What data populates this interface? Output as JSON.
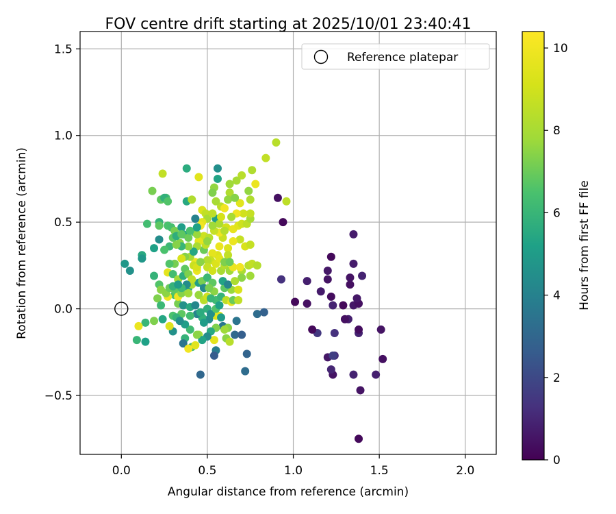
{
  "chart_data": {
    "type": "scatter",
    "title": "FOV centre drift starting at 2025/10/01 23:40:41",
    "xlabel": "Angular distance from reference (arcmin)",
    "ylabel": "Rotation from reference (arcmin)",
    "xlim": [
      -0.24,
      2.18
    ],
    "ylim": [
      -0.84,
      1.6
    ],
    "xticks": [
      0.0,
      0.5,
      1.0,
      1.5,
      2.0
    ],
    "xtick_labels": [
      "0.0",
      "0.5",
      "1.0",
      "1.5",
      "2.0"
    ],
    "yticks": [
      -0.5,
      0.0,
      0.5,
      1.0,
      1.5
    ],
    "ytick_labels": [
      "−0.5",
      "0.0",
      "0.5",
      "1.0",
      "1.5"
    ],
    "grid": true,
    "legend": {
      "placement": "top-right",
      "label": "Reference platepar"
    },
    "reference_point": {
      "x": 0.0,
      "y": 0.0
    },
    "colorbar": {
      "label": "Hours from first FF file",
      "range": [
        0,
        10.4
      ],
      "ticks": [
        0,
        2,
        4,
        6,
        8,
        10
      ],
      "tick_labels": [
        "0",
        "2",
        "4",
        "6",
        "8",
        "10"
      ],
      "colormap": "viridis"
    },
    "points": [
      [
        1.38,
        -0.75,
        0.2
      ],
      [
        1.39,
        -0.47,
        0.5
      ],
      [
        1.48,
        -0.38,
        0.8
      ],
      [
        1.35,
        -0.38,
        0.9
      ],
      [
        1.23,
        -0.38,
        0.5
      ],
      [
        1.52,
        -0.29,
        0.4
      ],
      [
        1.22,
        -0.35,
        1.0
      ],
      [
        1.2,
        -0.28,
        0.6
      ],
      [
        1.24,
        -0.27,
        1.2
      ],
      [
        1.23,
        -0.27,
        1.7
      ],
      [
        1.38,
        -0.14,
        0.9
      ],
      [
        1.24,
        -0.14,
        1.3
      ],
      [
        1.14,
        -0.14,
        1.5
      ],
      [
        1.11,
        -0.12,
        0.2
      ],
      [
        1.38,
        -0.12,
        0.3
      ],
      [
        1.51,
        -0.12,
        0.5
      ],
      [
        1.32,
        -0.06,
        0.8
      ],
      [
        1.3,
        -0.06,
        0.4
      ],
      [
        1.35,
        0.02,
        0.6
      ],
      [
        1.23,
        0.02,
        0.9
      ],
      [
        1.29,
        0.02,
        0.2
      ],
      [
        1.08,
        0.03,
        0.4
      ],
      [
        1.01,
        0.04,
        0.2
      ],
      [
        1.38,
        0.03,
        0.4
      ],
      [
        1.37,
        0.06,
        0.6
      ],
      [
        1.16,
        0.1,
        0.7
      ],
      [
        1.22,
        0.07,
        0.3
      ],
      [
        1.08,
        0.16,
        0.8
      ],
      [
        1.2,
        0.17,
        0.5
      ],
      [
        1.33,
        0.14,
        0.4
      ],
      [
        1.33,
        0.18,
        0.5
      ],
      [
        1.4,
        0.19,
        0.9
      ],
      [
        1.2,
        0.22,
        0.6
      ],
      [
        1.35,
        0.26,
        0.7
      ],
      [
        1.22,
        0.3,
        0.2
      ],
      [
        1.35,
        0.43,
        0.7
      ],
      [
        0.93,
        0.17,
        1.3
      ],
      [
        0.94,
        0.5,
        0.2
      ],
      [
        0.91,
        0.64,
        0.4
      ],
      [
        0.96,
        0.62,
        8.5
      ],
      [
        0.9,
        0.96,
        8.4
      ],
      [
        0.84,
        0.87,
        8.6
      ],
      [
        0.76,
        0.8,
        8.2
      ],
      [
        0.7,
        0.77,
        8.4
      ],
      [
        0.67,
        0.74,
        8.0
      ],
      [
        0.63,
        0.72,
        7.8
      ],
      [
        0.56,
        0.81,
        4.5
      ],
      [
        0.56,
        0.75,
        5.3
      ],
      [
        0.54,
        0.7,
        7.6
      ],
      [
        0.53,
        0.67,
        7.3
      ],
      [
        0.63,
        0.67,
        8.2
      ],
      [
        0.74,
        0.68,
        7.6
      ],
      [
        0.78,
        0.72,
        9.8
      ],
      [
        0.69,
        0.61,
        9.5
      ],
      [
        0.58,
        0.59,
        8.5
      ],
      [
        0.55,
        0.62,
        8.0
      ],
      [
        0.62,
        0.63,
        7.6
      ],
      [
        0.66,
        0.64,
        7.4
      ],
      [
        0.75,
        0.63,
        8.2
      ],
      [
        0.47,
        0.57,
        9.3
      ],
      [
        0.49,
        0.55,
        8.6
      ],
      [
        0.5,
        0.52,
        8.0
      ],
      [
        0.47,
        0.5,
        9.6
      ],
      [
        0.46,
        0.48,
        10.0
      ],
      [
        0.43,
        0.52,
        4.0
      ],
      [
        0.38,
        0.62,
        5.5
      ],
      [
        0.41,
        0.63,
        8.2
      ],
      [
        0.38,
        0.81,
        5.6
      ],
      [
        0.45,
        0.76,
        9.5
      ],
      [
        0.24,
        0.78,
        8.6
      ],
      [
        0.23,
        0.63,
        6.8
      ],
      [
        0.26,
        0.64,
        6.3
      ],
      [
        0.25,
        0.64,
        5.8
      ],
      [
        0.27,
        0.62,
        6.6
      ],
      [
        0.18,
        0.68,
        7.2
      ],
      [
        0.15,
        0.49,
        6.3
      ],
      [
        0.22,
        0.5,
        5.9
      ],
      [
        0.22,
        0.48,
        6.8
      ],
      [
        0.27,
        0.48,
        6.5
      ],
      [
        0.29,
        0.47,
        6.4
      ],
      [
        0.31,
        0.45,
        7.2
      ],
      [
        0.35,
        0.47,
        5.1
      ],
      [
        0.36,
        0.43,
        5.3
      ],
      [
        0.39,
        0.41,
        7.0
      ],
      [
        0.43,
        0.44,
        6.3
      ],
      [
        0.34,
        0.38,
        7.5
      ],
      [
        0.28,
        0.36,
        6.1
      ],
      [
        0.25,
        0.34,
        6.5
      ],
      [
        0.22,
        0.4,
        4.4
      ],
      [
        0.19,
        0.35,
        5.2
      ],
      [
        0.12,
        0.31,
        5.5
      ],
      [
        0.12,
        0.29,
        4.8
      ],
      [
        0.02,
        0.26,
        4.8
      ],
      [
        0.05,
        0.22,
        4.6
      ],
      [
        0.19,
        0.19,
        5.9
      ],
      [
        0.22,
        0.14,
        6.6
      ],
      [
        0.23,
        0.11,
        7.5
      ],
      [
        0.21,
        0.06,
        7.3
      ],
      [
        0.23,
        0.02,
        6.1
      ],
      [
        0.24,
        -0.06,
        5.4
      ],
      [
        0.19,
        -0.07,
        7.3
      ],
      [
        0.14,
        -0.08,
        6.0
      ],
      [
        0.1,
        -0.1,
        9.8
      ],
      [
        0.14,
        -0.19,
        5.2
      ],
      [
        0.09,
        -0.18,
        6.0
      ],
      [
        0.3,
        -0.13,
        4.6
      ],
      [
        0.37,
        -0.17,
        5.9
      ],
      [
        0.36,
        -0.2,
        3.5
      ],
      [
        0.41,
        -0.22,
        6.2
      ],
      [
        0.43,
        -0.21,
        9.5
      ],
      [
        0.39,
        -0.23,
        10.0
      ],
      [
        0.46,
        -0.38,
        3.0
      ],
      [
        0.45,
        -0.15,
        7.8
      ],
      [
        0.54,
        -0.18,
        9.6
      ],
      [
        0.55,
        -0.24,
        3.8
      ],
      [
        0.54,
        -0.27,
        2.6
      ],
      [
        0.61,
        -0.17,
        7.5
      ],
      [
        0.63,
        -0.19,
        8.4
      ],
      [
        0.66,
        -0.15,
        3.1
      ],
      [
        0.7,
        -0.15,
        2.7
      ],
      [
        0.72,
        -0.36,
        3.2
      ],
      [
        0.73,
        -0.26,
        2.9
      ],
      [
        0.67,
        -0.07,
        3.5
      ],
      [
        0.79,
        -0.03,
        3.2
      ],
      [
        0.83,
        -0.02,
        2.8
      ],
      [
        0.55,
        -0.04,
        9.2
      ],
      [
        0.57,
        -0.04,
        9.6
      ],
      [
        0.59,
        -0.1,
        3.6
      ],
      [
        0.51,
        -0.06,
        4.4
      ],
      [
        0.47,
        -0.05,
        5.8
      ],
      [
        0.48,
        -0.08,
        5.0
      ],
      [
        0.44,
        -0.03,
        4.1
      ],
      [
        0.4,
        -0.04,
        6.3
      ],
      [
        0.35,
        -0.03,
        6.8
      ],
      [
        0.3,
        -0.04,
        6.5
      ],
      [
        0.28,
        -0.1,
        9.4
      ],
      [
        0.32,
        -0.05,
        5.9
      ],
      [
        0.33,
        0.03,
        7.2
      ],
      [
        0.31,
        0.08,
        6.5
      ],
      [
        0.31,
        0.11,
        6.8
      ],
      [
        0.27,
        0.07,
        9.9
      ],
      [
        0.26,
        0.09,
        7.5
      ],
      [
        0.28,
        0.12,
        7.0
      ],
      [
        0.3,
        0.13,
        5.9
      ],
      [
        0.33,
        0.07,
        10.0
      ],
      [
        0.35,
        0.09,
        7.4
      ],
      [
        0.39,
        0.12,
        5.6
      ],
      [
        0.39,
        0.09,
        7.8
      ],
      [
        0.41,
        0.14,
        8.0
      ],
      [
        0.45,
        0.08,
        7.7
      ],
      [
        0.45,
        0.15,
        5.1
      ],
      [
        0.47,
        0.16,
        7.2
      ],
      [
        0.5,
        0.18,
        6.1
      ],
      [
        0.53,
        0.15,
        6.8
      ],
      [
        0.54,
        0.1,
        7.5
      ],
      [
        0.55,
        0.05,
        6.2
      ],
      [
        0.58,
        0.07,
        5.9
      ],
      [
        0.61,
        0.05,
        8.5
      ],
      [
        0.64,
        0.04,
        9.8
      ],
      [
        0.65,
        0.05,
        7.0
      ],
      [
        0.68,
        0.05,
        8.6
      ],
      [
        0.64,
        0.11,
        7.7
      ],
      [
        0.6,
        0.12,
        6.8
      ],
      [
        0.59,
        0.16,
        5.3
      ],
      [
        0.58,
        0.22,
        8.0
      ],
      [
        0.6,
        0.25,
        8.3
      ],
      [
        0.63,
        0.22,
        7.8
      ],
      [
        0.65,
        0.24,
        9.8
      ],
      [
        0.7,
        0.22,
        8.1
      ],
      [
        0.7,
        0.18,
        7.5
      ],
      [
        0.75,
        0.19,
        7.8
      ],
      [
        0.69,
        0.24,
        10.0
      ],
      [
        0.74,
        0.25,
        8.4
      ],
      [
        0.76,
        0.26,
        8.6
      ],
      [
        0.79,
        0.25,
        8.3
      ],
      [
        0.72,
        0.36,
        9.2
      ],
      [
        0.75,
        0.37,
        8.7
      ],
      [
        0.69,
        0.4,
        8.7
      ],
      [
        0.65,
        0.39,
        9.8
      ],
      [
        0.62,
        0.35,
        9.3
      ],
      [
        0.62,
        0.31,
        8.6
      ],
      [
        0.57,
        0.36,
        9.8
      ],
      [
        0.56,
        0.31,
        9.3
      ],
      [
        0.53,
        0.32,
        9.6
      ],
      [
        0.52,
        0.28,
        8.8
      ],
      [
        0.5,
        0.28,
        8.3
      ],
      [
        0.48,
        0.34,
        7.0
      ],
      [
        0.49,
        0.37,
        8.6
      ],
      [
        0.47,
        0.4,
        10.0
      ],
      [
        0.48,
        0.42,
        8.9
      ],
      [
        0.45,
        0.39,
        9.6
      ],
      [
        0.44,
        0.43,
        7.7
      ],
      [
        0.43,
        0.27,
        9.9
      ],
      [
        0.44,
        0.22,
        9.8
      ],
      [
        0.42,
        0.25,
        8.8
      ],
      [
        0.4,
        0.3,
        8.0
      ],
      [
        0.37,
        0.3,
        7.4
      ],
      [
        0.35,
        0.29,
        9.2
      ],
      [
        0.31,
        0.26,
        7.2
      ],
      [
        0.28,
        0.26,
        6.6
      ],
      [
        0.27,
        0.21,
        9.6
      ],
      [
        0.3,
        0.2,
        6.3
      ],
      [
        0.33,
        0.17,
        7.8
      ],
      [
        0.36,
        0.19,
        5.7
      ],
      [
        0.37,
        0.23,
        6.8
      ],
      [
        0.39,
        0.2,
        7.3
      ],
      [
        0.41,
        0.17,
        8.5
      ],
      [
        0.44,
        0.24,
        9.2
      ],
      [
        0.46,
        0.27,
        7.5
      ],
      [
        0.5,
        0.24,
        8.7
      ],
      [
        0.53,
        0.22,
        9.0
      ],
      [
        0.55,
        0.26,
        9.3
      ],
      [
        0.57,
        0.29,
        9.5
      ],
      [
        0.6,
        0.27,
        7.3
      ],
      [
        0.63,
        0.27,
        7.0
      ],
      [
        0.59,
        0.41,
        8.8
      ],
      [
        0.57,
        0.44,
        9.9
      ],
      [
        0.54,
        0.45,
        8.7
      ],
      [
        0.55,
        0.52,
        5.1
      ],
      [
        0.57,
        0.49,
        8.1
      ],
      [
        0.61,
        0.47,
        9.0
      ],
      [
        0.65,
        0.46,
        9.7
      ],
      [
        0.68,
        0.48,
        9.5
      ],
      [
        0.7,
        0.49,
        8.9
      ],
      [
        0.73,
        0.49,
        8.5
      ],
      [
        0.75,
        0.52,
        8.0
      ],
      [
        0.75,
        0.55,
        8.7
      ],
      [
        0.71,
        0.55,
        9.0
      ],
      [
        0.67,
        0.55,
        10.0
      ],
      [
        0.64,
        0.53,
        8.0
      ],
      [
        0.6,
        0.58,
        10.0
      ],
      [
        0.58,
        0.53,
        9.1
      ],
      [
        0.6,
        0.45,
        8.3
      ],
      [
        0.53,
        0.55,
        8.5
      ],
      [
        0.53,
        0.48,
        7.8
      ],
      [
        0.51,
        0.41,
        8.4
      ],
      [
        0.5,
        0.39,
        7.6
      ],
      [
        0.44,
        0.36,
        8.0
      ],
      [
        0.42,
        0.33,
        5.4
      ],
      [
        0.39,
        0.36,
        7.6
      ],
      [
        0.35,
        0.36,
        6.0
      ],
      [
        0.32,
        0.37,
        7.4
      ],
      [
        0.3,
        0.41,
        6.8
      ],
      [
        0.32,
        0.42,
        5.7
      ],
      [
        0.35,
        0.43,
        6.8
      ],
      [
        0.4,
        0.45,
        6.5
      ],
      [
        0.44,
        0.47,
        5.2
      ],
      [
        0.38,
        0.14,
        4.4
      ],
      [
        0.35,
        0.12,
        6.2
      ],
      [
        0.33,
        0.14,
        5.0
      ],
      [
        0.36,
        0.02,
        4.6
      ],
      [
        0.4,
        0.01,
        5.5
      ],
      [
        0.43,
        0.02,
        4.2
      ],
      [
        0.46,
        -0.02,
        5.6
      ],
      [
        0.5,
        0.0,
        5.7
      ],
      [
        0.52,
        -0.03,
        4.5
      ],
      [
        0.48,
        0.05,
        8.4
      ],
      [
        0.48,
        0.12,
        4.3
      ],
      [
        0.51,
        0.12,
        7.2
      ],
      [
        0.5,
        0.07,
        8.9
      ],
      [
        0.52,
        0.06,
        6.0
      ],
      [
        0.55,
        0.0,
        6.6
      ],
      [
        0.57,
        0.02,
        5.2
      ],
      [
        0.58,
        -0.05,
        5.0
      ],
      [
        0.62,
        -0.11,
        7.5
      ],
      [
        0.6,
        -0.12,
        7.8
      ],
      [
        0.55,
        -0.11,
        7.3
      ],
      [
        0.52,
        -0.13,
        5.5
      ],
      [
        0.5,
        -0.16,
        4.4
      ],
      [
        0.47,
        -0.18,
        5.3
      ],
      [
        0.44,
        -0.15,
        7.5
      ],
      [
        0.4,
        -0.12,
        6.2
      ],
      [
        0.37,
        -0.09,
        5.1
      ],
      [
        0.34,
        -0.07,
        4.5
      ],
      [
        0.62,
        0.14,
        4.1
      ],
      [
        0.66,
        0.16,
        8.1
      ],
      [
        0.68,
        0.11,
        9.2
      ]
    ]
  }
}
